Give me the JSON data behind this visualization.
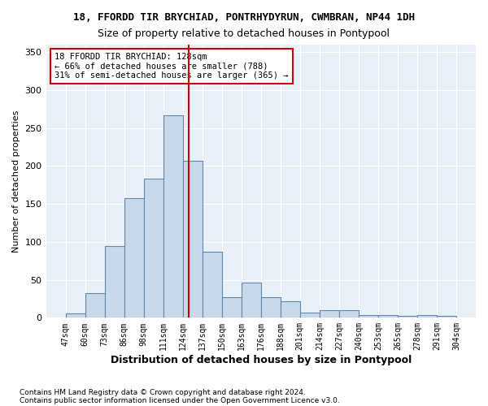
{
  "title1": "18, FFORDD TIR BRYCHIAD, PONTRHYDYRUN, CWMBRAN, NP44 1DH",
  "title2": "Size of property relative to detached houses in Pontypool",
  "xlabel": "Distribution of detached houses by size in Pontypool",
  "ylabel": "Number of detached properties",
  "bin_labels": [
    "47sqm",
    "60sqm",
    "73sqm",
    "86sqm",
    "98sqm",
    "111sqm",
    "124sqm",
    "137sqm",
    "150sqm",
    "163sqm",
    "176sqm",
    "188sqm",
    "201sqm",
    "214sqm",
    "227sqm",
    "240sqm",
    "253sqm",
    "265sqm",
    "278sqm",
    "291sqm",
    "304sqm"
  ],
  "bar_heights": [
    6,
    32,
    95,
    158,
    183,
    267,
    207,
    87,
    27,
    46,
    27,
    22,
    7,
    10,
    10,
    4,
    4,
    3,
    4,
    2
  ],
  "bar_color": "#c9d9ea",
  "bar_edge_color": "#5f8ab0",
  "annotation_line1": "18 FFORDD TIR BRYCHIAD: 128sqm",
  "annotation_line2": "← 66% of detached houses are smaller (788)",
  "annotation_line3": "31% of semi-detached houses are larger (365) →",
  "vline_color": "#cc0000",
  "footer1": "Contains HM Land Registry data © Crown copyright and database right 2024.",
  "footer2": "Contains public sector information licensed under the Open Government Licence v3.0.",
  "ylim": [
    0,
    360
  ],
  "yticks": [
    0,
    50,
    100,
    150,
    200,
    250,
    300,
    350
  ]
}
